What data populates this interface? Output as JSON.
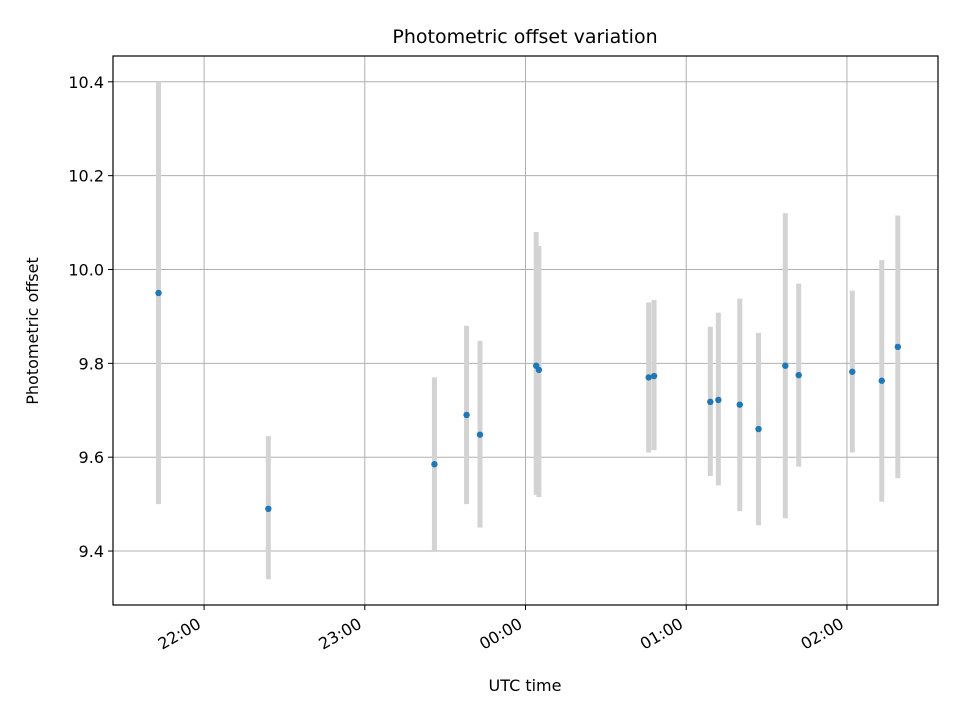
{
  "chart_data": {
    "type": "scatter",
    "title": "Photometric offset variation",
    "xlabel": "UTC time",
    "ylabel": "Photometric offset",
    "x_ticks": [
      "22:00",
      "23:00",
      "00:00",
      "01:00",
      "02:00"
    ],
    "y_ticks": [
      "9.4",
      "9.6",
      "9.8",
      "10.0",
      "10.2",
      "10.4"
    ],
    "ylim": [
      9.285,
      10.455
    ],
    "xlim": [
      "21:26",
      "02:34"
    ],
    "grid": true,
    "legend": "none",
    "point_color": "#1f77b4",
    "errorbar_color": "#d3d3d3",
    "points": [
      {
        "x": "21:43",
        "y": 9.95,
        "ymin": 9.5,
        "ymax": 10.4
      },
      {
        "x": "22:24",
        "y": 9.49,
        "ymin": 9.34,
        "ymax": 9.645
      },
      {
        "x": "23:26",
        "y": 9.585,
        "ymin": 9.4,
        "ymax": 9.77
      },
      {
        "x": "23:38",
        "y": 9.69,
        "ymin": 9.5,
        "ymax": 9.88
      },
      {
        "x": "23:43",
        "y": 9.648,
        "ymin": 9.45,
        "ymax": 9.848
      },
      {
        "x": "00:04",
        "y": 9.795,
        "ymin": 9.52,
        "ymax": 10.08
      },
      {
        "x": "00:05",
        "y": 9.786,
        "ymin": 9.515,
        "ymax": 10.05
      },
      {
        "x": "00:46",
        "y": 9.77,
        "ymin": 9.61,
        "ymax": 9.93
      },
      {
        "x": "00:48",
        "y": 9.773,
        "ymin": 9.615,
        "ymax": 9.935
      },
      {
        "x": "01:09",
        "y": 9.718,
        "ymin": 9.56,
        "ymax": 9.878
      },
      {
        "x": "01:12",
        "y": 9.722,
        "ymin": 9.54,
        "ymax": 9.908
      },
      {
        "x": "01:20",
        "y": 9.712,
        "ymin": 9.485,
        "ymax": 9.938
      },
      {
        "x": "01:27",
        "y": 9.66,
        "ymin": 9.455,
        "ymax": 9.865
      },
      {
        "x": "01:37",
        "y": 9.795,
        "ymin": 9.47,
        "ymax": 10.12
      },
      {
        "x": "01:42",
        "y": 9.775,
        "ymin": 9.58,
        "ymax": 9.97
      },
      {
        "x": "02:02",
        "y": 9.782,
        "ymin": 9.61,
        "ymax": 9.955
      },
      {
        "x": "02:13",
        "y": 9.763,
        "ymin": 9.505,
        "ymax": 10.02
      },
      {
        "x": "02:19",
        "y": 9.835,
        "ymin": 9.555,
        "ymax": 10.115
      }
    ]
  }
}
